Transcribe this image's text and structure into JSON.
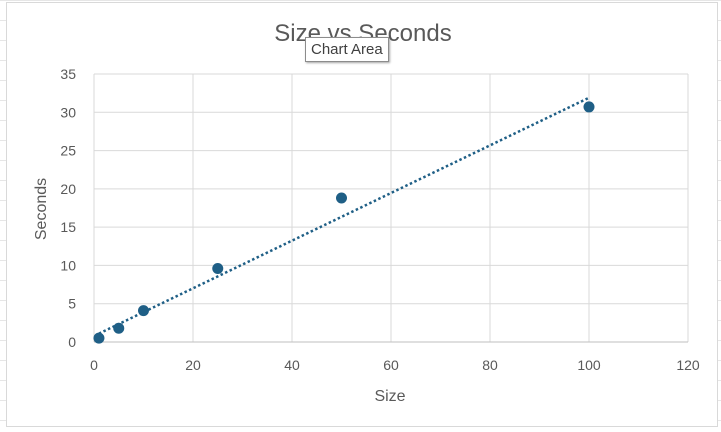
{
  "tooltip": {
    "text": "Chart Area"
  },
  "colors": {
    "series": "#1f5f86",
    "grid": "#d9d9d9",
    "text": "#595959"
  },
  "chart_data": {
    "type": "scatter",
    "title": "Size vs Seconds",
    "xlabel": "Size",
    "ylabel": "Seconds",
    "xlim": [
      0,
      120
    ],
    "ylim": [
      0,
      35
    ],
    "xticks": [
      0,
      20,
      40,
      60,
      80,
      100,
      120
    ],
    "yticks": [
      0,
      5,
      10,
      15,
      20,
      25,
      30,
      35
    ],
    "grid": true,
    "legend": "none",
    "series": [
      {
        "x": [
          1,
          5,
          10,
          25,
          50,
          100
        ],
        "y": [
          0.5,
          1.8,
          4.1,
          9.6,
          18.8,
          30.7
        ],
        "trendline": {
          "type": "linear",
          "style": "dotted",
          "x": [
            1,
            100
          ],
          "y": [
            1.1,
            31.9
          ]
        }
      }
    ]
  }
}
